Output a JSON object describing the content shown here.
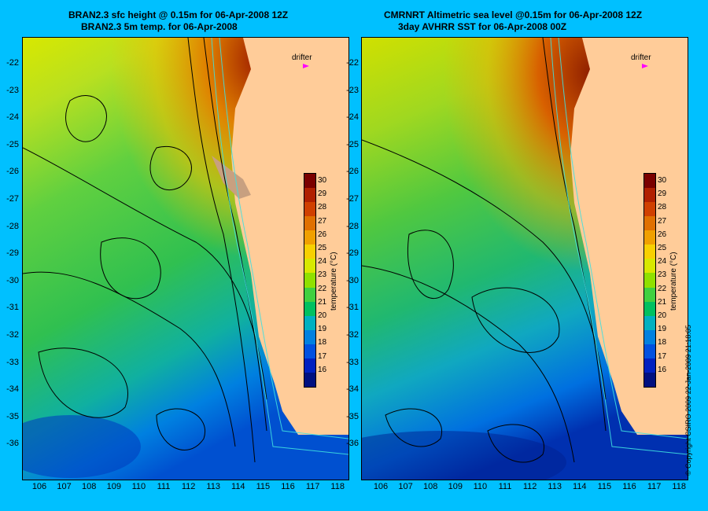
{
  "left_panel": {
    "title_line1": "BRAN2.3 sfc height @ 0.15m for 06-Apr-2008 12Z",
    "title_line2": "BRAN2.3 5m temp. for 06-Apr-2008"
  },
  "right_panel": {
    "title_line1": "CMRNRT Altimetric sea level  @0.15m  for 06-Apr-2008 12Z",
    "title_line2": "3day AVHRR SST for 06-Apr-2008 00Z"
  },
  "y_ticks": [
    "-22",
    "-23",
    "-24",
    "-25",
    "-26",
    "-27",
    "-28",
    "-29",
    "-30",
    "-31",
    "-32",
    "-33",
    "-34",
    "-35",
    "-36"
  ],
  "x_ticks": [
    "106",
    "107",
    "108",
    "109",
    "110",
    "111",
    "112",
    "113",
    "114",
    "115",
    "116",
    "117",
    "118"
  ],
  "colorbar": {
    "label": "temperature (°C)",
    "ticks": [
      "30",
      "29",
      "28",
      "27",
      "26",
      "25",
      "24",
      "23",
      "22",
      "21",
      "20",
      "19",
      "18",
      "17",
      "16"
    ],
    "colors": [
      "#7a0000",
      "#b02000",
      "#d04000",
      "#e07000",
      "#f0a000",
      "#f8d000",
      "#d8e800",
      "#90e000",
      "#40d040",
      "#00c060",
      "#00b0c0",
      "#0080e0",
      "#0050e0",
      "#0020c0",
      "#001080"
    ]
  },
  "drifter_label": "drifter",
  "copyright": "© Copyright CSIRO 2009  22-Jan-2009 21:18:05",
  "colors": {
    "background": "#00c0ff",
    "land": "#ffcc99",
    "contour": "#000000",
    "isobath": "#40e0e0",
    "drifter": "#ff00ff"
  }
}
